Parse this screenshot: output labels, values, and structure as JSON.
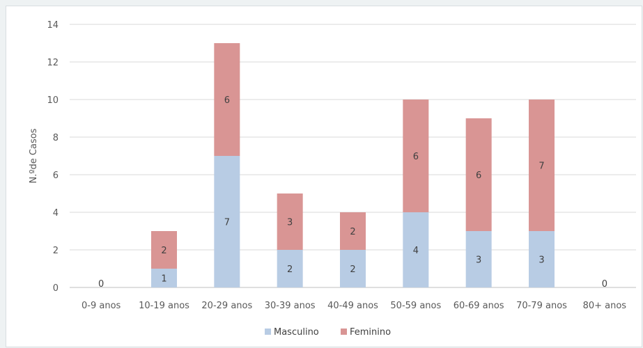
{
  "chart_data": {
    "type": "bar",
    "stacked": true,
    "categories": [
      "0-9 anos",
      "10-19 anos",
      "20-29 anos",
      "30-39 anos",
      "40-49 anos",
      "50-59 anos",
      "60-69 anos",
      "70-79 anos",
      "80+ anos"
    ],
    "series": [
      {
        "name": "Masculino",
        "color": "#b8cce4",
        "values": [
          0,
          1,
          7,
          2,
          2,
          4,
          3,
          3,
          0
        ]
      },
      {
        "name": "Feminino",
        "color": "#d99594",
        "values": [
          0,
          2,
          6,
          3,
          2,
          6,
          6,
          7,
          0
        ]
      }
    ],
    "zero_labels": [
      "0",
      "",
      "",
      "",
      "",
      "",
      "",
      "",
      "0"
    ],
    "ylabel": "N.ºde Casos",
    "xlabel": "",
    "ylim": [
      0,
      14
    ],
    "yticks": [
      0,
      2,
      4,
      6,
      8,
      10,
      12,
      14
    ],
    "grid": true,
    "legend_position": "bottom"
  }
}
